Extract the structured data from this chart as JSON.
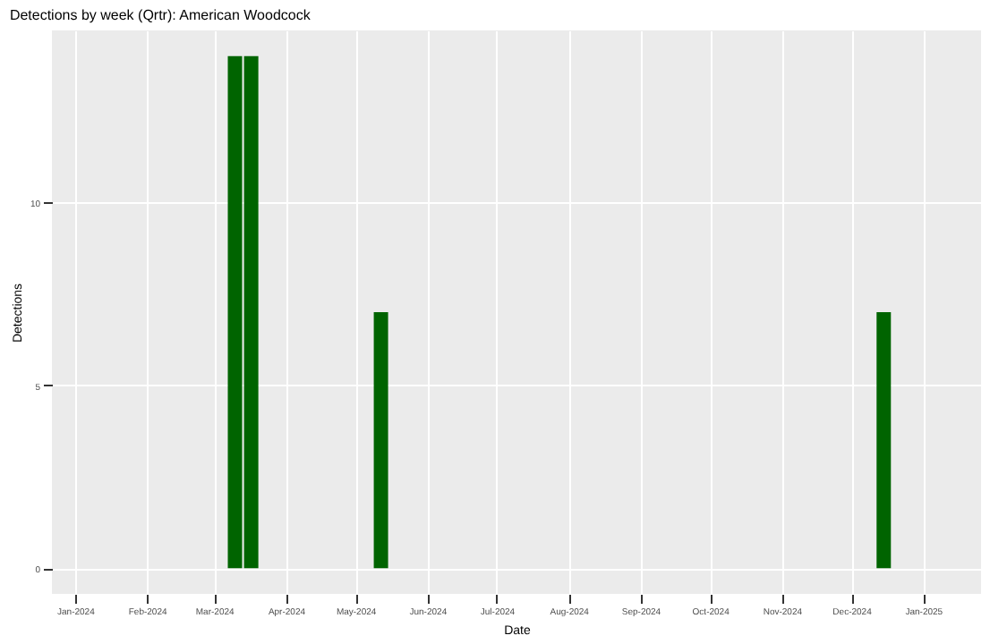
{
  "chart_data": {
    "type": "bar",
    "title": "Detections by week (Qrtr): American Woodcock",
    "xlabel": "Date",
    "ylabel": "Detections",
    "x": [
      "2024-03-10",
      "2024-03-17",
      "2024-05-12",
      "2024-12-15"
    ],
    "series": [
      {
        "color": "#006400",
        "values": [
          14,
          14,
          7,
          7
        ]
      }
    ],
    "xlim": [
      "2023-12-22",
      "2025-01-26"
    ],
    "xticks": [
      {
        "value": "2024-01-01",
        "label": "Jan-2024"
      },
      {
        "value": "2024-02-01",
        "label": "Feb-2024"
      },
      {
        "value": "2024-03-01",
        "label": "Mar-2024"
      },
      {
        "value": "2024-04-01",
        "label": "Apr-2024"
      },
      {
        "value": "2024-05-01",
        "label": "May-2024"
      },
      {
        "value": "2024-06-01",
        "label": "Jun-2024"
      },
      {
        "value": "2024-07-01",
        "label": "Jul-2024"
      },
      {
        "value": "2024-08-01",
        "label": "Aug-2024"
      },
      {
        "value": "2024-09-01",
        "label": "Sep-2024"
      },
      {
        "value": "2024-10-01",
        "label": "Oct-2024"
      },
      {
        "value": "2024-11-01",
        "label": "Nov-2024"
      },
      {
        "value": "2024-12-01",
        "label": "Dec-2024"
      },
      {
        "value": "2025-01-01",
        "label": "Jan-2025"
      }
    ],
    "ylim": [
      -0.7,
      14.7
    ],
    "yticks": [
      0,
      5,
      10
    ],
    "grid": true
  }
}
